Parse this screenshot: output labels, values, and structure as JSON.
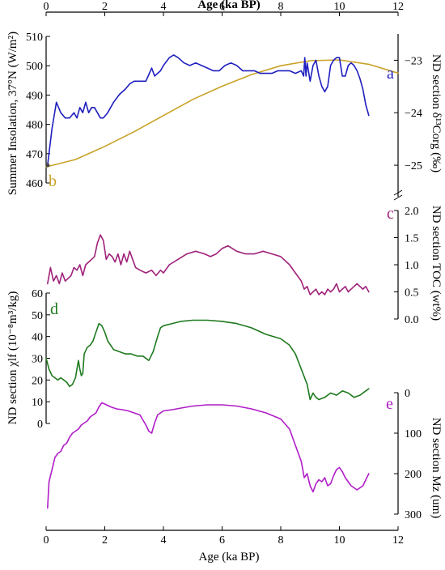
{
  "chart_data": [
    {
      "type": "line",
      "panel": "a",
      "panel_label_letter": "a",
      "x_axis_top_label": "Age (ka BP)",
      "xlim": [
        0,
        12
      ],
      "x_ticks": [
        0,
        2,
        4,
        6,
        8,
        10,
        12
      ],
      "ylabel_right": "ND section δ¹³Corg (‰)",
      "ylim_right": [
        -25.4,
        -22.5
      ],
      "y_ticks_right": [
        -23,
        -24,
        -25
      ],
      "y_tick_labels_right": [
        "−23",
        "−24",
        "−25"
      ],
      "color": "#1f1fbf",
      "series": [
        {
          "x": [
            0.05,
            0.2,
            0.35,
            0.5,
            0.65,
            0.8,
            0.95,
            1.05,
            1.15,
            1.25,
            1.35,
            1.45,
            1.55,
            1.65,
            1.75,
            1.85,
            1.95,
            2.1,
            2.3,
            2.5,
            2.7,
            2.85,
            3.0,
            3.2,
            3.4,
            3.6,
            3.7,
            3.8,
            3.9,
            4.0,
            4.2,
            4.35,
            4.5,
            4.7,
            4.9,
            5.1,
            5.3,
            5.5,
            5.7,
            5.9,
            6.1,
            6.3,
            6.5,
            6.7,
            6.9,
            7.1,
            7.3,
            7.5,
            7.7,
            7.9,
            8.1,
            8.3,
            8.5,
            8.7,
            8.78,
            8.82,
            8.86,
            8.9,
            9.0,
            9.1,
            9.2,
            9.3,
            9.4,
            9.5,
            9.6,
            9.7,
            9.8,
            9.9,
            10.0,
            10.1,
            10.2,
            10.3,
            10.4,
            10.5,
            10.6,
            10.7,
            10.8,
            10.9,
            11.0
          ],
          "y": [
            -25.0,
            -24.3,
            -23.8,
            -24.0,
            -24.1,
            -24.1,
            -24.0,
            -24.1,
            -23.9,
            -24.0,
            -23.8,
            -24.0,
            -23.9,
            -23.9,
            -24.0,
            -24.1,
            -24.1,
            -24.0,
            -23.8,
            -23.65,
            -23.55,
            -23.45,
            -23.4,
            -23.4,
            -23.4,
            -23.15,
            -23.3,
            -23.25,
            -23.2,
            -23.1,
            -22.95,
            -22.9,
            -22.95,
            -23.05,
            -23.1,
            -23.05,
            -23.1,
            -23.15,
            -23.2,
            -23.2,
            -23.1,
            -23.05,
            -23.1,
            -23.2,
            -23.2,
            -23.2,
            -23.25,
            -23.25,
            -23.25,
            -23.2,
            -23.2,
            -23.2,
            -23.25,
            -23.2,
            -23.3,
            -22.95,
            -23.3,
            -23.05,
            -23.4,
            -23.1,
            -23.0,
            -23.3,
            -23.5,
            -23.6,
            -23.5,
            -23.1,
            -23.0,
            -22.95,
            -22.95,
            -23.3,
            -23.3,
            -23.1,
            -23.05,
            -23.1,
            -23.2,
            -23.35,
            -23.55,
            -23.85,
            -24.05
          ]
        }
      ]
    },
    {
      "type": "line",
      "panel": "b",
      "panel_label_letter": "b",
      "ylabel_left": "Summer Insolation, 37°N (W/m²)",
      "ylim_left": [
        460,
        510
      ],
      "y_ticks_left": [
        460,
        470,
        480,
        490,
        500,
        510
      ],
      "color": "#c9a227",
      "series": [
        {
          "x": [
            0,
            1,
            2,
            3,
            4,
            5,
            6,
            7,
            8,
            9,
            10,
            11,
            12
          ],
          "y": [
            465.5,
            468,
            472.5,
            477.5,
            483,
            488.5,
            493,
            497,
            500,
            501.7,
            502,
            500.5,
            497.5
          ]
        }
      ]
    },
    {
      "type": "line",
      "panel": "c",
      "panel_label_letter": "c",
      "ylabel_right": "ND section TOC (wt%)",
      "ylim_right": [
        0,
        2.0
      ],
      "y_ticks_right": [
        0.0,
        0.5,
        1.0,
        1.5,
        2.0
      ],
      "y_tick_labels_right": [
        "0.0",
        "0.5",
        "1.0",
        "1.5",
        "2.0"
      ],
      "color": "#a0237a",
      "series": [
        {
          "x": [
            0.05,
            0.15,
            0.25,
            0.35,
            0.45,
            0.55,
            0.65,
            0.75,
            0.85,
            0.95,
            1.05,
            1.15,
            1.25,
            1.35,
            1.45,
            1.55,
            1.65,
            1.75,
            1.85,
            1.95,
            2.05,
            2.15,
            2.25,
            2.35,
            2.45,
            2.55,
            2.65,
            2.75,
            2.85,
            2.95,
            3.05,
            3.2,
            3.4,
            3.6,
            3.75,
            3.9,
            4.0,
            4.2,
            4.5,
            4.8,
            5.1,
            5.4,
            5.6,
            5.8,
            6.0,
            6.2,
            6.5,
            6.8,
            7.1,
            7.4,
            7.7,
            8.0,
            8.3,
            8.5,
            8.7,
            8.8,
            8.9,
            9.0,
            9.1,
            9.2,
            9.3,
            9.4,
            9.5,
            9.6,
            9.7,
            9.8,
            9.9,
            10.0,
            10.1,
            10.2,
            10.3,
            10.4,
            10.5,
            10.6,
            10.7,
            10.8,
            10.9,
            11.0
          ],
          "y": [
            0.65,
            0.95,
            0.7,
            0.8,
            0.65,
            0.85,
            0.7,
            0.75,
            0.8,
            0.95,
            0.9,
            1.0,
            0.8,
            1.0,
            1.05,
            1.1,
            1.15,
            1.4,
            1.55,
            1.45,
            1.1,
            1.2,
            1.15,
            1.05,
            1.2,
            1.0,
            1.2,
            1.05,
            1.25,
            1.1,
            0.95,
            0.9,
            0.85,
            0.9,
            0.8,
            0.9,
            0.85,
            1.0,
            1.1,
            1.2,
            1.25,
            1.2,
            1.15,
            1.2,
            1.3,
            1.35,
            1.25,
            1.2,
            1.2,
            1.25,
            1.2,
            1.15,
            1.0,
            0.85,
            0.7,
            0.55,
            0.6,
            0.45,
            0.5,
            0.55,
            0.45,
            0.5,
            0.45,
            0.55,
            0.5,
            0.55,
            0.65,
            0.5,
            0.55,
            0.6,
            0.5,
            0.55,
            0.6,
            0.65,
            0.6,
            0.55,
            0.6,
            0.5
          ]
        }
      ]
    },
    {
      "type": "line",
      "panel": "d",
      "panel_label_letter": "d",
      "ylabel_left": "ND section χlf (10⁻⁸m³/kg)",
      "ylim_left": [
        0,
        60
      ],
      "y_ticks_left": [
        0,
        10,
        20,
        30,
        40,
        50,
        60
      ],
      "color": "#1e7a1e",
      "series": [
        {
          "x": [
            0,
            0.1,
            0.2,
            0.3,
            0.4,
            0.5,
            0.6,
            0.7,
            0.8,
            0.9,
            1.0,
            1.1,
            1.15,
            1.2,
            1.25,
            1.3,
            1.4,
            1.5,
            1.6,
            1.7,
            1.8,
            1.9,
            2.0,
            2.1,
            2.3,
            2.5,
            2.7,
            2.9,
            3.1,
            3.3,
            3.5,
            3.65,
            3.8,
            3.9,
            4.0,
            4.3,
            4.6,
            5.0,
            5.5,
            6.0,
            6.5,
            7.0,
            7.5,
            8.0,
            8.3,
            8.5,
            8.7,
            8.9,
            9.0,
            9.1,
            9.2,
            9.3,
            9.5,
            9.7,
            9.9,
            10.1,
            10.3,
            10.5,
            10.7,
            10.9,
            11.0
          ],
          "y": [
            30,
            25,
            22,
            21,
            20,
            21,
            20,
            19,
            17,
            18,
            21,
            29,
            25,
            22,
            23,
            32,
            35,
            36,
            38,
            42,
            46,
            45,
            42,
            38,
            34,
            33,
            32,
            32,
            31,
            31,
            29,
            33,
            40,
            44,
            45,
            46,
            47,
            47.5,
            47.5,
            47,
            46,
            44,
            41,
            39,
            36,
            32,
            25,
            18,
            11,
            14,
            12,
            11,
            12,
            14,
            13,
            15,
            14,
            12,
            13,
            15,
            16
          ]
        }
      ]
    },
    {
      "type": "line",
      "panel": "e",
      "panel_label_letter": "e",
      "x_axis_bottom_label": "Age (ka BP)",
      "ylabel_right": "ND section Mz (um)",
      "ylim_right": [
        0,
        300
      ],
      "y_ticks_right": [
        0,
        100,
        200,
        300
      ],
      "y_inverted": true,
      "color": "#b020c8",
      "series": [
        {
          "x": [
            0.05,
            0.1,
            0.2,
            0.3,
            0.4,
            0.5,
            0.6,
            0.7,
            0.8,
            0.9,
            1.0,
            1.1,
            1.2,
            1.3,
            1.4,
            1.5,
            1.6,
            1.7,
            1.8,
            1.9,
            2.0,
            2.2,
            2.4,
            2.6,
            2.8,
            3.0,
            3.2,
            3.4,
            3.5,
            3.6,
            3.7,
            3.8,
            3.9,
            4.0,
            4.3,
            4.6,
            5.0,
            5.5,
            6.0,
            6.5,
            7.0,
            7.5,
            8.0,
            8.3,
            8.5,
            8.7,
            8.8,
            8.9,
            9.0,
            9.1,
            9.2,
            9.3,
            9.4,
            9.5,
            9.6,
            9.7,
            9.8,
            9.9,
            10.0,
            10.1,
            10.2,
            10.4,
            10.6,
            10.8,
            11.0
          ],
          "y": [
            285,
            220,
            190,
            160,
            150,
            145,
            130,
            125,
            110,
            100,
            95,
            90,
            80,
            75,
            70,
            60,
            55,
            50,
            35,
            25,
            28,
            35,
            40,
            42,
            45,
            50,
            55,
            80,
            95,
            100,
            75,
            55,
            50,
            45,
            42,
            38,
            33,
            30,
            30,
            33,
            40,
            50,
            65,
            90,
            130,
            170,
            210,
            200,
            230,
            245,
            225,
            215,
            220,
            210,
            230,
            225,
            205,
            190,
            185,
            195,
            210,
            230,
            240,
            230,
            200
          ]
        }
      ]
    }
  ]
}
